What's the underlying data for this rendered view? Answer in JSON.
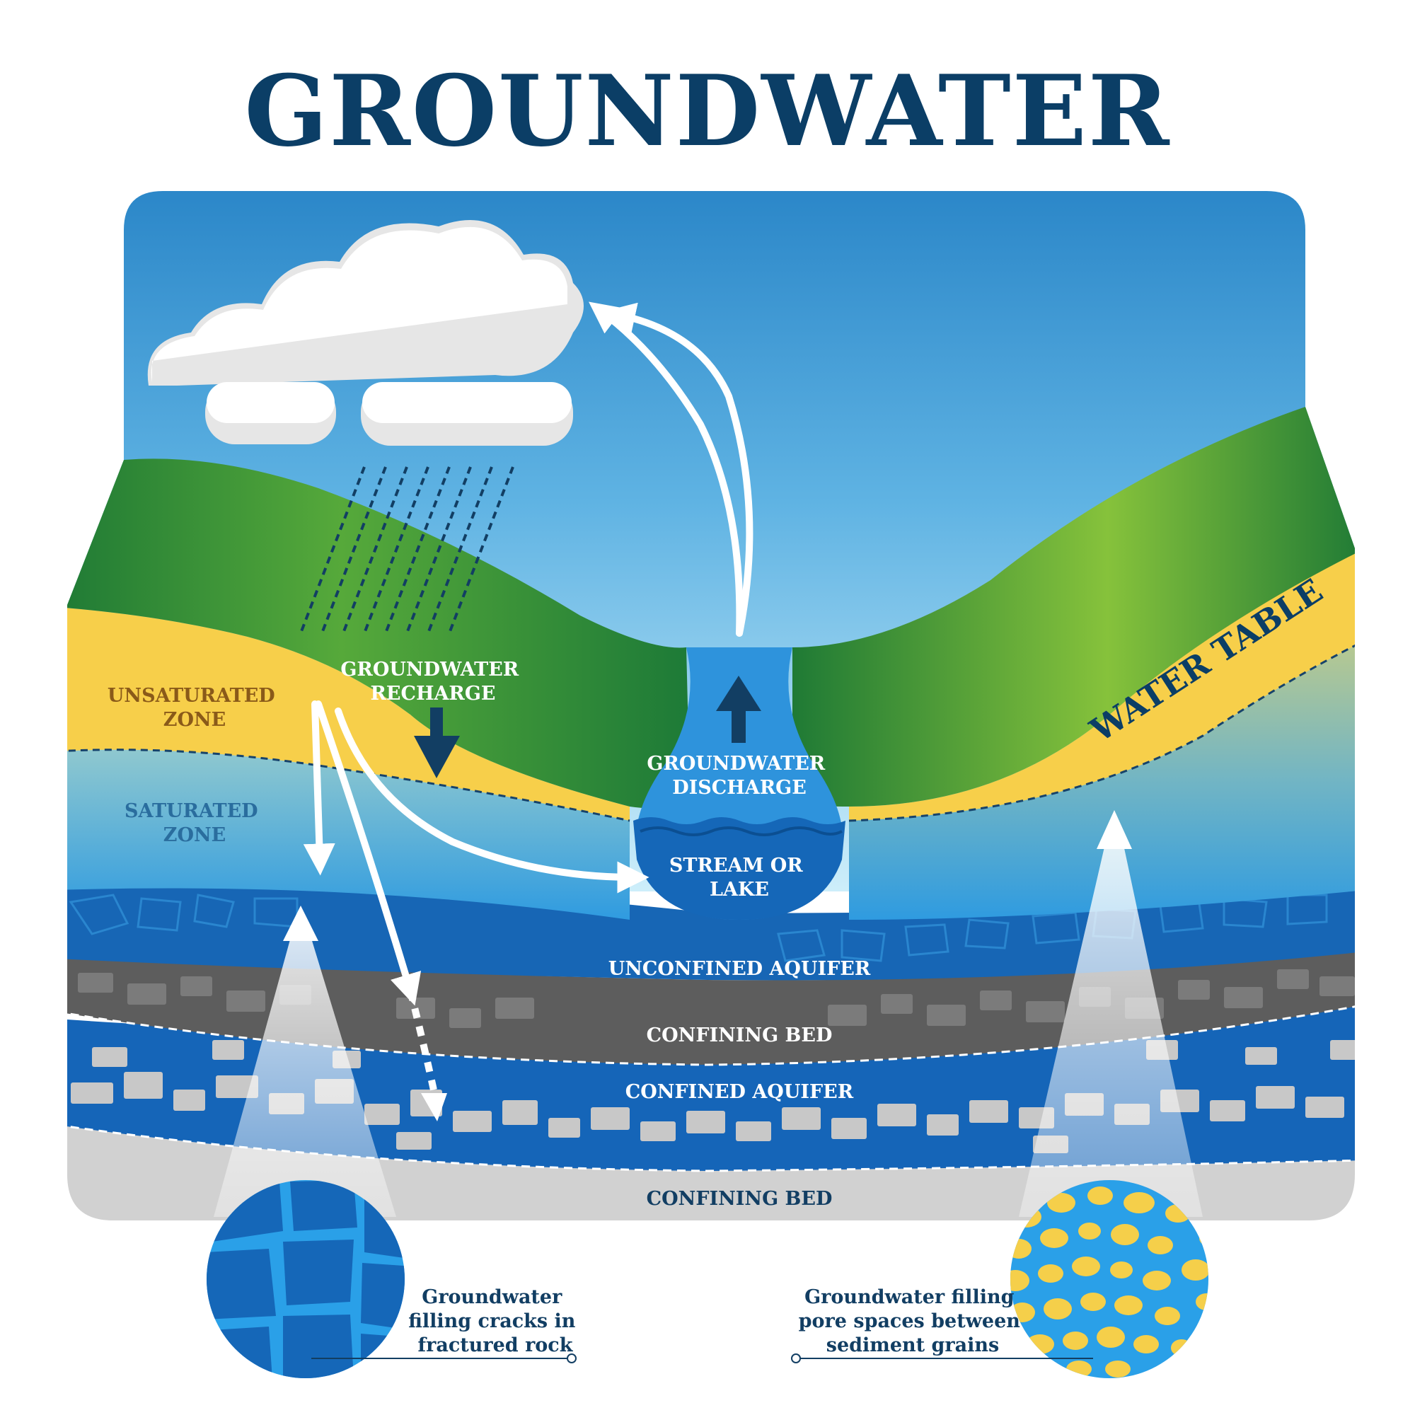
{
  "title": "GROUNDWATER",
  "labels": {
    "unsaturated_zone": [
      "UNSATURATED",
      "ZONE"
    ],
    "saturated_zone": [
      "SATURATED",
      "ZONE"
    ],
    "groundwater_recharge": [
      "GROUNDWATER",
      "RECHARGE"
    ],
    "groundwater_discharge": [
      "GROUNDWATER",
      "DISCHARGE"
    ],
    "stream_or_lake": [
      "STREAM OR",
      "LAKE"
    ],
    "water_table": "WATER TABLE",
    "unconfined_aquifer": "UNCONFINED AQUIFER",
    "confining_bed_upper": "CONFINING BED",
    "confined_aquifer": "CONFINED AQUIFER",
    "confining_bed_lower": "CONFINING BED"
  },
  "insets": {
    "fractured_rock": [
      "Groundwater",
      "filling cracks in",
      "fractured rock"
    ],
    "sediment_grains": [
      "Groundwater filling",
      "pore spaces between",
      "sediment grains"
    ]
  },
  "colors": {
    "title": "#0b3e66",
    "sky_top": "#2a86c8",
    "sky_bottom": "#cdeefa",
    "hill_green": "#3e9a3a",
    "sand_yellow": "#f7cf4a",
    "water_blue": "#2b8fd8",
    "deep_blue": "#0d63b0",
    "rock_gray": "#5d5d5d",
    "bed_light_gray": "#cfcfcf"
  }
}
